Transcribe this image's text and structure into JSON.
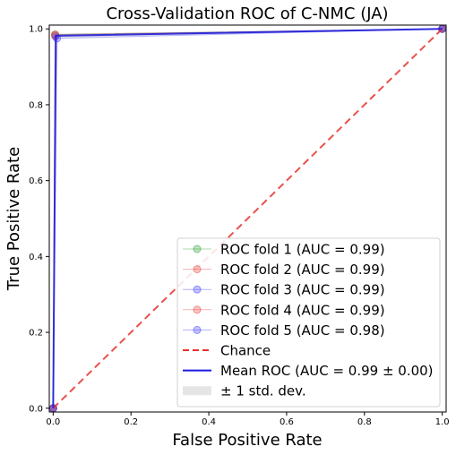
{
  "chart_data": {
    "type": "line",
    "title": "Cross-Validation ROC of C-NMC (JA)",
    "xlabel": "False Positive Rate",
    "ylabel": "True Positive Rate",
    "xlim": [
      -0.01,
      1.01
    ],
    "ylim": [
      -0.01,
      1.01
    ],
    "xticks": [
      0.0,
      0.2,
      0.4,
      0.6,
      0.8,
      1.0
    ],
    "xtick_labels": [
      "0.0",
      "0.2",
      "0.4",
      "0.6",
      "0.8",
      "1.0"
    ],
    "yticks": [
      0.0,
      0.2,
      0.4,
      0.6,
      0.8,
      1.0
    ],
    "ytick_labels": [
      "0.0",
      "0.2",
      "0.4",
      "0.6",
      "0.8",
      "1.0"
    ],
    "grid": false,
    "legend_position": "lower-right",
    "series": [
      {
        "name": "ROC fold 1 (AUC = 0.99)",
        "color": "#2ca02c",
        "x": [
          0.0,
          0.005,
          1.0
        ],
        "y": [
          0.0,
          0.985,
          1.0
        ]
      },
      {
        "name": "ROC fold 2 (AUC = 0.99)",
        "color": "#e8413b",
        "x": [
          0.0,
          0.005,
          1.0
        ],
        "y": [
          0.0,
          0.985,
          1.0
        ]
      },
      {
        "name": "ROC fold 3 (AUC = 0.99)",
        "color": "#3b3bff",
        "x": [
          0.0,
          0.006,
          1.0
        ],
        "y": [
          0.0,
          0.98,
          1.0
        ]
      },
      {
        "name": "ROC fold 4 (AUC = 0.99)",
        "color": "#e8413b",
        "x": [
          0.0,
          0.005,
          1.0
        ],
        "y": [
          0.0,
          0.982,
          1.0
        ]
      },
      {
        "name": "ROC fold 5 (AUC = 0.98)",
        "color": "#3b3bff",
        "x": [
          0.0,
          0.01,
          1.0
        ],
        "y": [
          0.0,
          0.975,
          1.0
        ]
      }
    ],
    "chance": {
      "name": "Chance",
      "color": "#e8312b",
      "x": [
        0.0,
        1.0
      ],
      "y": [
        0.0,
        1.0
      ]
    },
    "mean": {
      "name": "Mean ROC (AUC = 0.99 ± 0.00)",
      "color": "#1a1ae0",
      "x": [
        0.0,
        0.007,
        1.0
      ],
      "y": [
        0.0,
        0.982,
        1.0
      ]
    },
    "std": {
      "name": "± 1 std. dev.",
      "color": "#bdbdbd",
      "upper": [
        0.0,
        0.988,
        1.0
      ],
      "lower": [
        0.0,
        0.975,
        1.0
      ]
    }
  }
}
